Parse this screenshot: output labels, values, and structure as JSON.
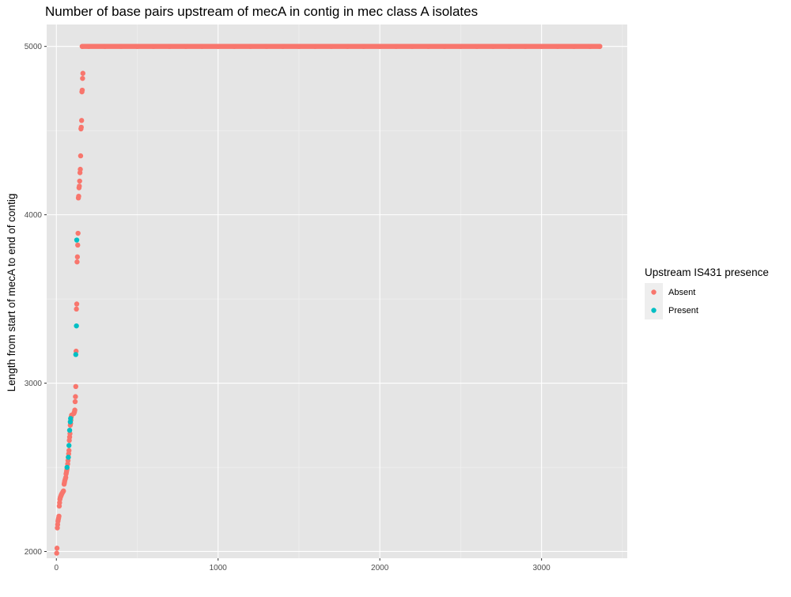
{
  "chart_data": {
    "type": "scatter",
    "title": "Number of base pairs upstream of mecA in contig in mec class A isolates",
    "xlabel": "",
    "ylabel": "Length from start of mecA to end of contig",
    "xlim": [
      -60,
      3530
    ],
    "ylim": [
      1960,
      5130
    ],
    "x_ticks": [
      0,
      1000,
      2000,
      3000
    ],
    "y_ticks": [
      2000,
      3000,
      4000,
      5000
    ],
    "grid": true,
    "background": "#e5e5e5",
    "legend": {
      "title": "Upstream IS431 presence",
      "position": "right",
      "entries": [
        {
          "label": "Absent",
          "color": "#f8766d"
        },
        {
          "label": "Present",
          "color": "#00bfc4"
        }
      ]
    },
    "series": [
      {
        "name": "Absent",
        "color": "#f8766d",
        "points": [
          [
            2,
            1990
          ],
          [
            4,
            2020
          ],
          [
            6,
            2140
          ],
          [
            8,
            2160
          ],
          [
            10,
            2180
          ],
          [
            12,
            2190
          ],
          [
            14,
            2200
          ],
          [
            16,
            2210
          ],
          [
            18,
            2270
          ],
          [
            20,
            2290
          ],
          [
            22,
            2310
          ],
          [
            24,
            2320
          ],
          [
            26,
            2325
          ],
          [
            28,
            2330
          ],
          [
            30,
            2335
          ],
          [
            32,
            2340
          ],
          [
            35,
            2345
          ],
          [
            38,
            2350
          ],
          [
            41,
            2355
          ],
          [
            44,
            2360
          ],
          [
            48,
            2400
          ],
          [
            50,
            2410
          ],
          [
            52,
            2420
          ],
          [
            55,
            2430
          ],
          [
            58,
            2440
          ],
          [
            60,
            2460
          ],
          [
            62,
            2470
          ],
          [
            64,
            2480
          ],
          [
            66,
            2490
          ],
          [
            70,
            2520
          ],
          [
            72,
            2540
          ],
          [
            74,
            2560
          ],
          [
            76,
            2580
          ],
          [
            78,
            2600
          ],
          [
            80,
            2660
          ],
          [
            82,
            2680
          ],
          [
            84,
            2700
          ],
          [
            86,
            2750
          ],
          [
            88,
            2760
          ],
          [
            90,
            2780
          ],
          [
            92,
            2800
          ],
          [
            94,
            2810
          ],
          [
            108,
            2820
          ],
          [
            110,
            2825
          ],
          [
            112,
            2830
          ],
          [
            114,
            2840
          ],
          [
            116,
            2890
          ],
          [
            118,
            2920
          ],
          [
            120,
            2980
          ],
          [
            122,
            3190
          ],
          [
            124,
            3440
          ],
          [
            126,
            3470
          ],
          [
            128,
            3720
          ],
          [
            130,
            3750
          ],
          [
            132,
            3820
          ],
          [
            134,
            3890
          ],
          [
            136,
            4100
          ],
          [
            138,
            4110
          ],
          [
            140,
            4160
          ],
          [
            142,
            4170
          ],
          [
            144,
            4200
          ],
          [
            146,
            4250
          ],
          [
            148,
            4270
          ],
          [
            150,
            4350
          ],
          [
            152,
            4510
          ],
          [
            154,
            4520
          ],
          [
            156,
            4560
          ],
          [
            158,
            4730
          ],
          [
            160,
            4740
          ],
          [
            162,
            4810
          ],
          [
            164,
            4840
          ],
          [
            160,
            5000
          ],
          [
            200,
            5000
          ],
          [
            300,
            5000
          ],
          [
            400,
            5000
          ],
          [
            500,
            5000
          ],
          [
            600,
            5000
          ],
          [
            700,
            5000
          ],
          [
            800,
            5000
          ],
          [
            900,
            5000
          ],
          [
            1000,
            5000
          ],
          [
            1100,
            5000
          ],
          [
            1200,
            5000
          ],
          [
            1300,
            5000
          ],
          [
            1400,
            5000
          ],
          [
            1500,
            5000
          ],
          [
            1600,
            5000
          ],
          [
            1700,
            5000
          ],
          [
            1800,
            5000
          ],
          [
            1900,
            5000
          ],
          [
            2000,
            5000
          ],
          [
            2100,
            5000
          ],
          [
            2200,
            5000
          ],
          [
            2300,
            5000
          ],
          [
            2400,
            5000
          ],
          [
            2500,
            5000
          ],
          [
            2600,
            5000
          ],
          [
            2700,
            5000
          ],
          [
            2800,
            5000
          ],
          [
            2900,
            5000
          ],
          [
            3000,
            5000
          ],
          [
            3100,
            5000
          ],
          [
            3200,
            5000
          ],
          [
            3300,
            5000
          ],
          [
            3360,
            5000
          ]
        ]
      },
      {
        "name": "Present",
        "color": "#00bfc4",
        "points": [
          [
            66,
            2500
          ],
          [
            74,
            2560
          ],
          [
            78,
            2630
          ],
          [
            82,
            2720
          ],
          [
            86,
            2770
          ],
          [
            88,
            2790
          ],
          [
            120,
            3170
          ],
          [
            124,
            3340
          ],
          [
            126,
            3850
          ]
        ]
      }
    ]
  }
}
